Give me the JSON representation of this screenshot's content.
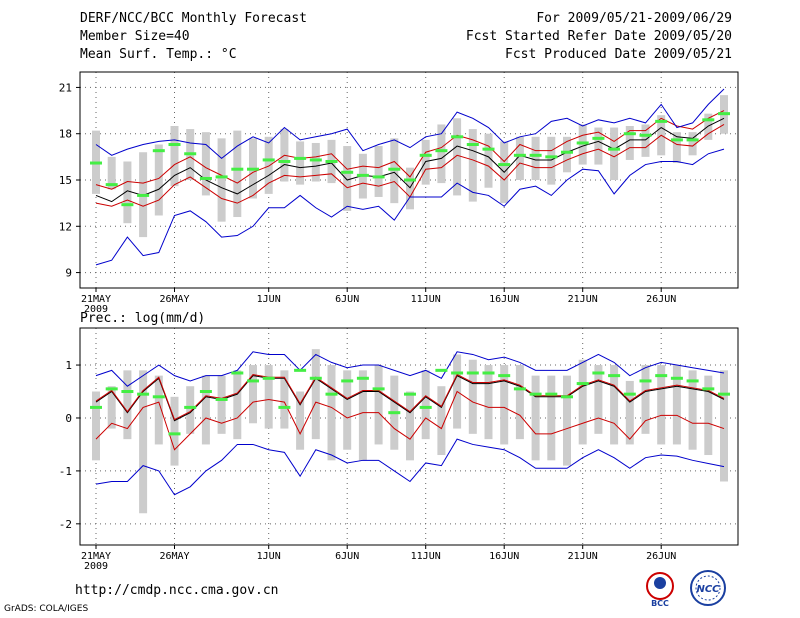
{
  "header": {
    "line1": "DERF/NCC/BCC Monthly Forecast",
    "line2": "Member Size=40",
    "line3": "Mean Surf. Temp.: °C",
    "right1": "For 2009/05/21-2009/06/29",
    "right2": "Fcst Started Refer Date 2009/05/20",
    "right3": "Fcst Produced Date 2009/05/21"
  },
  "footer": {
    "url": "http://cmdp.ncc.cma.gov.cn",
    "credit": "GrADS: COLA/IGES"
  },
  "logos": {
    "bcc": "BCC",
    "ncc": "NCC"
  },
  "colors": {
    "mean": "#000000",
    "p_lo": "#cc0000",
    "p_hi": "#cc0000",
    "ext": "#0000cc",
    "box": "#cccccc",
    "marker": "#44ee44"
  },
  "chart_data": [
    {
      "type": "line",
      "title": "Mean Surf. Temp.: °C",
      "days": 40,
      "xticks": [
        {
          "day": 0,
          "label": "21MAY",
          "sub": "2009"
        },
        {
          "day": 5,
          "label": "26MAY"
        },
        {
          "day": 11,
          "label": "1JUN"
        },
        {
          "day": 16,
          "label": "6JUN"
        },
        {
          "day": 21,
          "label": "11JUN"
        },
        {
          "day": 26,
          "label": "16JUN"
        },
        {
          "day": 31,
          "label": "21JUN"
        },
        {
          "day": 36,
          "label": "26JUN"
        }
      ],
      "yticks": [
        9,
        12,
        15,
        18,
        21
      ],
      "ylim": [
        8,
        22
      ],
      "series": [
        {
          "name": "ensemble mean",
          "values": [
            14.0,
            13.6,
            14.3,
            14.0,
            14.4,
            15.3,
            15.8,
            15.0,
            14.5,
            14.1,
            14.7,
            15.3,
            16.0,
            15.8,
            15.9,
            16.1,
            15.0,
            15.3,
            15.2,
            15.5,
            14.5,
            16.2,
            16.4,
            17.2,
            16.9,
            16.5,
            15.5,
            16.6,
            16.3,
            16.3,
            16.8,
            17.2,
            17.5,
            17.0,
            17.6,
            17.6,
            18.4,
            17.8,
            17.7,
            18.5,
            19.0
          ],
          "color": "#000000"
        },
        {
          "name": "upper spread",
          "values": [
            14.7,
            14.4,
            14.9,
            14.8,
            15.1,
            16.0,
            16.5,
            15.8,
            15.3,
            14.8,
            15.5,
            15.9,
            16.6,
            16.4,
            16.5,
            16.7,
            15.7,
            15.9,
            15.8,
            16.2,
            15.2,
            16.8,
            17.1,
            17.9,
            17.6,
            17.2,
            16.2,
            17.3,
            16.9,
            16.9,
            17.5,
            17.9,
            18.1,
            17.5,
            18.2,
            18.2,
            19.0,
            18.5,
            18.3,
            19.0,
            19.5
          ],
          "color": "#cc0000"
        },
        {
          "name": "lower spread",
          "values": [
            13.5,
            13.3,
            13.7,
            13.3,
            13.7,
            14.7,
            15.2,
            14.5,
            13.8,
            13.5,
            14.0,
            14.8,
            15.3,
            15.2,
            15.3,
            15.4,
            14.5,
            14.8,
            14.6,
            14.9,
            13.9,
            15.7,
            15.8,
            16.6,
            16.3,
            15.9,
            15.0,
            16.1,
            15.8,
            15.8,
            16.3,
            16.7,
            17.0,
            16.5,
            17.1,
            17.1,
            17.9,
            17.3,
            17.2,
            18.0,
            18.6
          ],
          "color": "#cc0000"
        },
        {
          "name": "upper extreme",
          "values": [
            17.3,
            16.6,
            17.0,
            17.3,
            17.5,
            17.6,
            17.4,
            17.3,
            16.4,
            17.2,
            17.8,
            17.4,
            18.4,
            17.6,
            17.8,
            18.0,
            18.3,
            16.9,
            17.3,
            17.6,
            17.1,
            17.8,
            18.0,
            19.4,
            19.0,
            18.4,
            17.4,
            17.8,
            18.0,
            18.8,
            19.0,
            18.5,
            18.9,
            18.7,
            19.0,
            18.7,
            19.9,
            18.4,
            18.7,
            19.9,
            20.9
          ],
          "color": "#0000cc"
        },
        {
          "name": "lower extreme",
          "values": [
            9.5,
            9.8,
            11.3,
            10.1,
            10.3,
            12.7,
            13.0,
            12.3,
            11.3,
            11.4,
            12.0,
            13.2,
            13.2,
            14.0,
            13.2,
            12.6,
            13.3,
            13.1,
            13.3,
            12.4,
            13.9,
            13.9,
            13.9,
            14.8,
            14.2,
            14.0,
            13.3,
            14.4,
            14.6,
            14.0,
            15.0,
            15.7,
            15.6,
            14.1,
            15.3,
            16.0,
            16.2,
            16.2,
            16.0,
            16.7,
            17.0
          ],
          "color": "#0000cc"
        }
      ],
      "boxes": {
        "low": [
          14.1,
          14.4,
          12.2,
          11.3,
          12.7,
          14.6,
          15.0,
          14.0,
          12.3,
          12.6,
          13.8,
          14.1,
          14.9,
          14.7,
          14.9,
          14.8,
          13.0,
          13.8,
          13.9,
          13.5,
          13.1,
          14.7,
          14.8,
          14.0,
          13.6,
          14.5,
          13.5,
          15.0,
          15.0,
          14.7,
          15.5,
          16.0,
          16.0,
          15.0,
          16.3,
          16.5,
          16.6,
          16.1,
          16.6,
          17.6,
          18.0
        ],
        "high": [
          18.2,
          16.5,
          16.2,
          16.8,
          17.3,
          18.5,
          18.3,
          18.1,
          17.7,
          18.2,
          17.7,
          17.8,
          18.3,
          17.5,
          17.4,
          17.6,
          17.2,
          16.7,
          17.2,
          17.7,
          15.8,
          17.6,
          18.6,
          19.0,
          18.3,
          18.0,
          17.5,
          17.8,
          17.8,
          17.8,
          17.8,
          18.6,
          18.4,
          18.4,
          18.5,
          18.6,
          19.2,
          18.1,
          18.1,
          19.3,
          20.5
        ]
      },
      "markers": [
        16.1,
        14.7,
        13.4,
        14.0,
        16.9,
        17.3,
        16.7,
        15.1,
        15.2,
        15.7,
        15.7,
        16.3,
        16.2,
        16.4,
        16.3,
        16.2,
        15.5,
        15.3,
        15.2,
        15.7,
        15.0,
        16.6,
        16.9,
        17.8,
        17.3,
        17.0,
        16.0,
        16.6,
        16.6,
        16.5,
        16.8,
        17.4,
        17.7,
        17.0,
        18.0,
        17.9,
        18.8,
        17.6,
        17.6,
        18.9,
        19.3
      ]
    },
    {
      "type": "line",
      "title": "Prec.: log(mm/d)",
      "days": 40,
      "xticks": [
        {
          "day": 0,
          "label": "21MAY",
          "sub": "2009"
        },
        {
          "day": 5,
          "label": "26MAY"
        },
        {
          "day": 11,
          "label": "1JUN"
        },
        {
          "day": 16,
          "label": "6JUN"
        },
        {
          "day": 21,
          "label": "11JUN"
        },
        {
          "day": 26,
          "label": "16JUN"
        },
        {
          "day": 31,
          "label": "21JUN"
        },
        {
          "day": 36,
          "label": "26JUN"
        }
      ],
      "yticks": [
        -2,
        -1,
        0,
        1
      ],
      "ylim": [
        -2.4,
        1.7
      ],
      "series": [
        {
          "name": "ensemble mean",
          "values": [
            0.3,
            0.5,
            0.1,
            0.5,
            0.75,
            -0.05,
            0.1,
            0.4,
            0.35,
            0.45,
            0.8,
            0.75,
            0.75,
            0.25,
            0.75,
            0.55,
            0.35,
            0.5,
            0.5,
            0.3,
            0.1,
            0.4,
            0.2,
            0.8,
            0.65,
            0.65,
            0.7,
            0.6,
            0.4,
            0.4,
            0.4,
            0.6,
            0.7,
            0.6,
            0.3,
            0.5,
            0.55,
            0.6,
            0.55,
            0.5,
            0.35
          ],
          "color": "#000000"
        },
        {
          "name": "upper spread",
          "values": [
            0.32,
            0.52,
            0.12,
            0.52,
            0.77,
            -0.03,
            0.12,
            0.42,
            0.37,
            0.47,
            0.82,
            0.77,
            0.77,
            0.27,
            0.77,
            0.57,
            0.37,
            0.52,
            0.52,
            0.32,
            0.12,
            0.42,
            0.22,
            0.82,
            0.67,
            0.67,
            0.72,
            0.62,
            0.42,
            0.42,
            0.42,
            0.62,
            0.72,
            0.62,
            0.32,
            0.52,
            0.57,
            0.62,
            0.57,
            0.52,
            0.37
          ],
          "color": "#cc0000"
        },
        {
          "name": "lower spread",
          "values": [
            -0.4,
            -0.1,
            -0.2,
            0.2,
            0.3,
            -0.6,
            -0.3,
            0.0,
            -0.1,
            0.0,
            0.3,
            0.35,
            0.3,
            -0.3,
            0.3,
            0.2,
            0.0,
            0.1,
            0.1,
            -0.2,
            -0.4,
            0.0,
            -0.2,
            0.5,
            0.3,
            0.2,
            0.2,
            0.05,
            -0.3,
            -0.3,
            -0.2,
            -0.1,
            0.0,
            -0.1,
            -0.4,
            -0.05,
            0.05,
            0.05,
            -0.1,
            -0.1,
            -0.2
          ],
          "color": "#cc0000"
        },
        {
          "name": "upper extreme",
          "values": [
            0.8,
            0.9,
            0.6,
            0.8,
            1.0,
            0.8,
            0.7,
            0.8,
            0.8,
            0.9,
            1.25,
            1.2,
            1.2,
            0.9,
            1.2,
            1.05,
            0.95,
            1.0,
            1.0,
            0.9,
            0.8,
            0.9,
            0.75,
            1.25,
            1.2,
            1.1,
            1.15,
            1.05,
            0.9,
            0.9,
            0.9,
            1.05,
            1.2,
            1.05,
            0.8,
            0.95,
            1.05,
            1.0,
            0.95,
            0.9,
            0.85
          ],
          "color": "#0000cc"
        },
        {
          "name": "lower extreme",
          "values": [
            -1.25,
            -1.2,
            -1.2,
            -0.9,
            -1.0,
            -1.45,
            -1.3,
            -1.0,
            -0.8,
            -0.5,
            -0.5,
            -0.6,
            -0.65,
            -1.1,
            -0.6,
            -0.7,
            -0.85,
            -0.8,
            -0.8,
            -1.0,
            -1.2,
            -0.85,
            -0.9,
            -0.4,
            -0.5,
            -0.55,
            -0.6,
            -0.75,
            -0.95,
            -0.95,
            -0.95,
            -0.75,
            -0.6,
            -0.75,
            -0.95,
            -0.75,
            -0.7,
            -0.72,
            -0.8,
            -0.86,
            -0.92
          ],
          "color": "#0000cc"
        }
      ],
      "boxes": {
        "low": [
          -0.8,
          -0.2,
          -0.4,
          -1.8,
          -0.5,
          -0.9,
          -0.3,
          -0.5,
          -0.3,
          -0.4,
          -0.1,
          -0.2,
          -0.2,
          -0.6,
          -0.4,
          -0.8,
          -0.6,
          -0.8,
          -0.5,
          -0.6,
          -0.8,
          -0.4,
          -0.7,
          -0.2,
          -0.3,
          -0.4,
          -0.5,
          -0.4,
          -0.8,
          -0.8,
          -0.9,
          -0.5,
          -0.3,
          -0.5,
          -0.5,
          -0.3,
          -0.5,
          -0.5,
          -0.6,
          -0.7,
          -1.2
        ],
        "high": [
          0.5,
          0.6,
          0.9,
          0.9,
          0.8,
          0.4,
          0.6,
          0.8,
          0.8,
          0.9,
          1.0,
          1.0,
          0.9,
          0.5,
          1.3,
          1.0,
          0.9,
          0.9,
          1.0,
          0.8,
          0.5,
          0.9,
          0.6,
          1.2,
          1.1,
          1.0,
          1.0,
          1.0,
          0.8,
          0.8,
          0.8,
          1.1,
          1.0,
          1.0,
          0.7,
          1.0,
          1.0,
          1.0,
          0.9,
          0.8,
          0.9
        ]
      },
      "markers": [
        0.2,
        0.55,
        0.5,
        0.45,
        0.4,
        -0.3,
        0.2,
        0.5,
        0.35,
        0.85,
        0.7,
        0.75,
        0.2,
        0.9,
        0.75,
        0.45,
        0.7,
        0.75,
        0.55,
        0.1,
        0.45,
        0.2,
        0.9,
        0.85,
        0.85,
        0.85,
        0.8,
        0.55,
        0.45,
        0.45,
        0.4,
        0.65,
        0.85,
        0.8,
        0.45,
        0.7,
        0.8,
        0.75,
        0.7,
        0.55,
        0.45
      ]
    }
  ]
}
